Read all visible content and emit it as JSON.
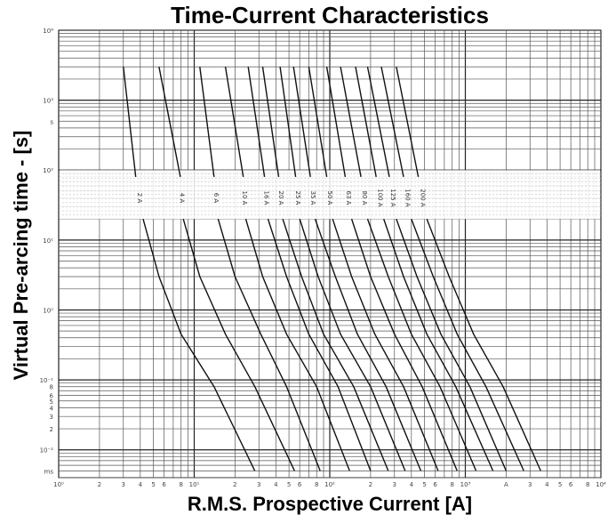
{
  "chart_data": {
    "type": "line",
    "title": "Time-Current Characteristics",
    "xlabel": "R.M.S. Prospective Current [A]",
    "ylabel": "Virtual Pre-arcing time - [s]",
    "x_scale": "log",
    "y_scale": "log",
    "xlim": [
      1,
      10000
    ],
    "ylim": [
      0.004,
      10000
    ],
    "grid": true,
    "x_tick_labels": [
      {
        "value": 1,
        "label": "10⁰"
      },
      {
        "value": 2,
        "label": "2"
      },
      {
        "value": 3,
        "label": "3"
      },
      {
        "value": 4,
        "label": "4"
      },
      {
        "value": 5,
        "label": "5"
      },
      {
        "value": 6,
        "label": "6"
      },
      {
        "value": 8,
        "label": "8"
      },
      {
        "value": 10,
        "label": "10¹"
      },
      {
        "value": 20,
        "label": "2"
      },
      {
        "value": 30,
        "label": "3"
      },
      {
        "value": 40,
        "label": "4"
      },
      {
        "value": 50,
        "label": "5"
      },
      {
        "value": 60,
        "label": "6"
      },
      {
        "value": 80,
        "label": "8"
      },
      {
        "value": 100,
        "label": "10²"
      },
      {
        "value": 200,
        "label": "2"
      },
      {
        "value": 300,
        "label": "3"
      },
      {
        "value": 400,
        "label": "4"
      },
      {
        "value": 500,
        "label": "5"
      },
      {
        "value": 600,
        "label": "6"
      },
      {
        "value": 800,
        "label": "8"
      },
      {
        "value": 1000,
        "label": "10³"
      },
      {
        "value": 2000,
        "label": "A"
      },
      {
        "value": 3000,
        "label": "3"
      },
      {
        "value": 4000,
        "label": "4"
      },
      {
        "value": 5000,
        "label": "5"
      },
      {
        "value": 6000,
        "label": "6"
      },
      {
        "value": 8000,
        "label": "8"
      },
      {
        "value": 10000,
        "label": "10⁴"
      }
    ],
    "y_tick_labels": [
      {
        "value": 10000,
        "label": "10⁴"
      },
      {
        "value": 1000,
        "label": "10³"
      },
      {
        "value": 500,
        "label": "s"
      },
      {
        "value": 100,
        "label": "10²"
      },
      {
        "value": 10,
        "label": "10¹"
      },
      {
        "value": 1,
        "label": "10⁰"
      },
      {
        "value": 0.1,
        "label": "10⁻¹"
      },
      {
        "value": 0.08,
        "label": "8"
      },
      {
        "value": 0.06,
        "label": "6"
      },
      {
        "value": 0.05,
        "label": "5"
      },
      {
        "value": 0.04,
        "label": "4"
      },
      {
        "value": 0.03,
        "label": "3"
      },
      {
        "value": 0.02,
        "label": "2"
      },
      {
        "value": 0.01,
        "label": "10⁻²"
      },
      {
        "value": 0.005,
        "label": "ms"
      }
    ],
    "label_band": [
      20,
      100
    ],
    "series": [
      {
        "name": "2 A",
        "upper": [
          [
            3.0,
            3000
          ],
          [
            3.7,
            80
          ]
        ],
        "lower": [
          [
            4.2,
            20
          ],
          [
            5.5,
            3
          ],
          [
            8,
            0.45
          ],
          [
            14,
            0.08
          ],
          [
            28,
            0.005
          ]
        ]
      },
      {
        "name": "4 A",
        "upper": [
          [
            5.5,
            3000
          ],
          [
            7.9,
            80
          ]
        ],
        "lower": [
          [
            8.3,
            20
          ],
          [
            11,
            3
          ],
          [
            17,
            0.45
          ],
          [
            28,
            0.08
          ],
          [
            55,
            0.005
          ]
        ]
      },
      {
        "name": "6 A",
        "upper": [
          [
            11,
            3000
          ],
          [
            14,
            80
          ]
        ],
        "lower": [
          [
            15,
            20
          ],
          [
            20,
            3
          ],
          [
            31,
            0.45
          ],
          [
            48,
            0.08
          ],
          [
            85,
            0.005
          ]
        ]
      },
      {
        "name": "10 A",
        "upper": [
          [
            17,
            3000
          ],
          [
            23,
            80
          ]
        ],
        "lower": [
          [
            24,
            20
          ],
          [
            32,
            3
          ],
          [
            48,
            0.45
          ],
          [
            80,
            0.08
          ],
          [
            140,
            0.005
          ]
        ]
      },
      {
        "name": "16 A",
        "upper": [
          [
            25,
            3000
          ],
          [
            33,
            80
          ]
        ],
        "lower": [
          [
            35,
            20
          ],
          [
            48,
            3
          ],
          [
            70,
            0.45
          ],
          [
            115,
            0.08
          ],
          [
            200,
            0.005
          ]
        ]
      },
      {
        "name": "20 A",
        "upper": [
          [
            32,
            3000
          ],
          [
            42,
            80
          ]
        ],
        "lower": [
          [
            45,
            20
          ],
          [
            62,
            3
          ],
          [
            90,
            0.45
          ],
          [
            150,
            0.08
          ],
          [
            270,
            0.005
          ]
        ]
      },
      {
        "name": "25 A",
        "upper": [
          [
            43,
            3000
          ],
          [
            56,
            80
          ]
        ],
        "lower": [
          [
            60,
            20
          ],
          [
            82,
            3
          ],
          [
            120,
            0.45
          ],
          [
            200,
            0.08
          ],
          [
            360,
            0.005
          ]
        ]
      },
      {
        "name": "35 A",
        "upper": [
          [
            54,
            3000
          ],
          [
            72,
            80
          ]
        ],
        "lower": [
          [
            78,
            20
          ],
          [
            110,
            3
          ],
          [
            160,
            0.45
          ],
          [
            260,
            0.08
          ],
          [
            470,
            0.005
          ]
        ]
      },
      {
        "name": "50 A",
        "upper": [
          [
            70,
            3000
          ],
          [
            95,
            80
          ]
        ],
        "lower": [
          [
            105,
            20
          ],
          [
            145,
            3
          ],
          [
            215,
            0.45
          ],
          [
            350,
            0.08
          ],
          [
            630,
            0.005
          ]
        ]
      },
      {
        "name": "63 A",
        "upper": [
          [
            95,
            3000
          ],
          [
            130,
            80
          ]
        ],
        "lower": [
          [
            145,
            20
          ],
          [
            200,
            3
          ],
          [
            300,
            0.45
          ],
          [
            480,
            0.08
          ],
          [
            870,
            0.005
          ]
        ]
      },
      {
        "name": "80 A",
        "upper": [
          [
            120,
            3000
          ],
          [
            170,
            80
          ]
        ],
        "lower": [
          [
            190,
            20
          ],
          [
            270,
            3
          ],
          [
            400,
            0.45
          ],
          [
            650,
            0.08
          ],
          [
            1200,
            0.005
          ]
        ]
      },
      {
        "name": "100 A",
        "upper": [
          [
            155,
            3000
          ],
          [
            220,
            80
          ]
        ],
        "lower": [
          [
            250,
            20
          ],
          [
            350,
            3
          ],
          [
            520,
            0.45
          ],
          [
            850,
            0.08
          ],
          [
            1600,
            0.005
          ]
        ]
      },
      {
        "name": "125 A",
        "upper": [
          [
            190,
            3000
          ],
          [
            275,
            80
          ]
        ],
        "lower": [
          [
            310,
            20
          ],
          [
            440,
            3
          ],
          [
            660,
            0.45
          ],
          [
            1080,
            0.08
          ],
          [
            2000,
            0.005
          ]
        ]
      },
      {
        "name": "160 A",
        "upper": [
          [
            240,
            3000
          ],
          [
            350,
            80
          ]
        ],
        "lower": [
          [
            400,
            20
          ],
          [
            580,
            3
          ],
          [
            870,
            0.45
          ],
          [
            1420,
            0.08
          ],
          [
            2700,
            0.005
          ]
        ]
      },
      {
        "name": "200 A",
        "upper": [
          [
            310,
            3000
          ],
          [
            450,
            80
          ]
        ],
        "lower": [
          [
            520,
            20
          ],
          [
            760,
            3
          ],
          [
            1150,
            0.45
          ],
          [
            1900,
            0.08
          ],
          [
            3600,
            0.005
          ]
        ]
      }
    ]
  }
}
